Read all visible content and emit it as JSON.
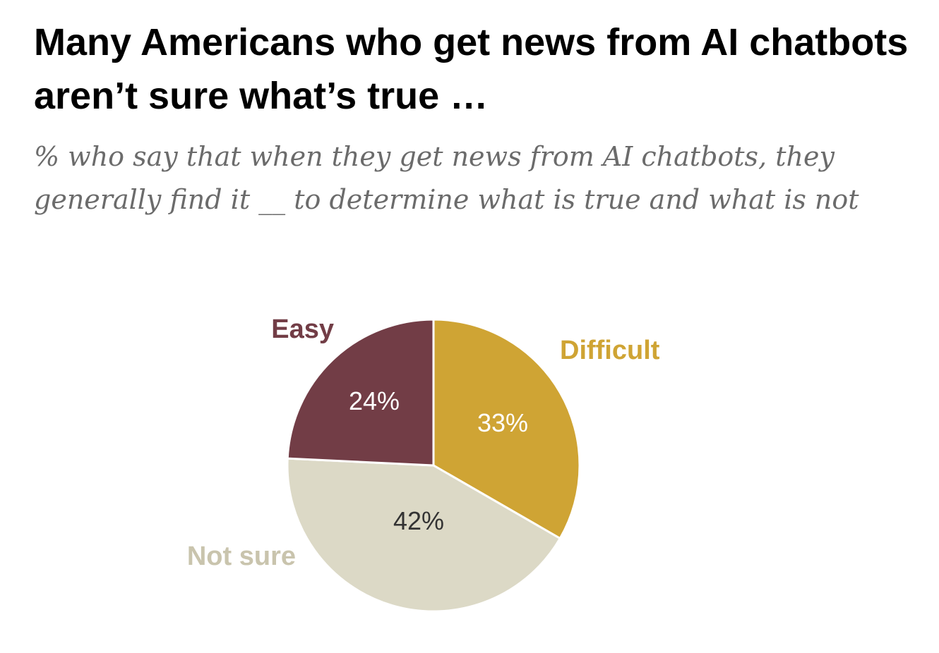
{
  "title": "Many Americans who get news from AI chatbots aren’t sure what’s true …",
  "subtitle": "% who say that when they get news from AI chatbots, they generally find it __ to determine what is true and what is not",
  "chart_data": {
    "type": "pie",
    "start": "12 o'clock",
    "direction": "clockwise",
    "legend": "none",
    "slices": [
      {
        "name": "Difficult",
        "value": 33,
        "value_label": "33%",
        "color": "#cfa434",
        "text_color": "#ffffff"
      },
      {
        "name": "Not sure",
        "value": 42,
        "value_label": "42%",
        "color": "#dcd9c6",
        "text_color": "#333333"
      },
      {
        "name": "Easy",
        "value": 24,
        "value_label": "24%",
        "color": "#723d46",
        "text_color": "#ffffff"
      }
    ]
  }
}
